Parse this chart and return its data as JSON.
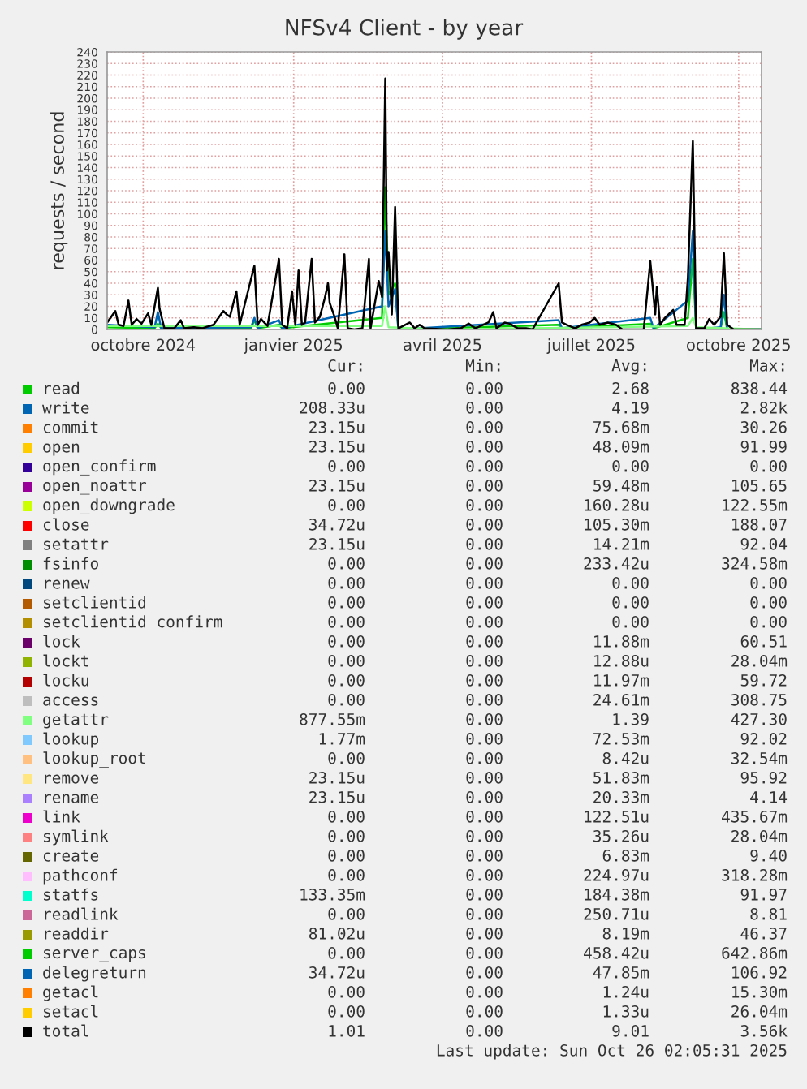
{
  "chart_data": {
    "type": "line",
    "title": "NFSv4 Client - by year",
    "ylabel": "requests / second",
    "xlim": [
      "2024-09-21",
      "2025-10-26"
    ],
    "xticks": [
      {
        "value": "2024-10-13",
        "label": "octobre 2024"
      },
      {
        "value": "2025-01-13",
        "label": "janvier 2025"
      },
      {
        "value": "2025-04-14",
        "label": "avril 2025"
      },
      {
        "value": "2025-07-14",
        "label": "juillet 2025"
      },
      {
        "value": "2025-10-12",
        "label": "octobre 2025"
      }
    ],
    "ylim": [
      0,
      240
    ],
    "yticks": [
      0,
      10,
      20,
      30,
      40,
      50,
      60,
      70,
      80,
      90,
      100,
      110,
      120,
      130,
      140,
      150,
      160,
      170,
      180,
      190,
      200,
      210,
      220,
      230,
      240
    ],
    "grid": true,
    "legend": "bottom",
    "series": [
      {
        "name": "read",
        "color": "#00cc00",
        "x": [
          "2024-09-21",
          "2024-10-20",
          "2024-10-22",
          "2024-10-24",
          "2024-12-18",
          "2024-12-20",
          "2024-12-22",
          "2025-01-04",
          "2025-01-06",
          "2025-03-08",
          "2025-03-10",
          "2025-03-12",
          "2025-03-16",
          "2025-03-18",
          "2025-06-24",
          "2025-06-26",
          "2025-08-19",
          "2025-08-21",
          "2025-09-11",
          "2025-09-14",
          "2025-09-16",
          "2025-10-01",
          "2025-10-03",
          "2025-10-05",
          "2025-10-26"
        ],
        "values": [
          2,
          1,
          5,
          1,
          1,
          8,
          1,
          4,
          1,
          10,
          123,
          30,
          40,
          0,
          4,
          1,
          5,
          1,
          10,
          61,
          0,
          1,
          15,
          0,
          0
        ]
      },
      {
        "name": "write",
        "color": "#0066b3",
        "x": [
          "2024-09-21",
          "2024-10-20",
          "2024-10-22",
          "2024-10-24",
          "2024-12-18",
          "2024-12-20",
          "2024-12-22",
          "2025-01-04",
          "2025-01-06",
          "2025-03-08",
          "2025-03-10",
          "2025-03-12",
          "2025-03-16",
          "2025-03-18",
          "2025-06-24",
          "2025-06-26",
          "2025-08-19",
          "2025-08-21",
          "2025-09-11",
          "2025-09-14",
          "2025-09-16",
          "2025-10-01",
          "2025-10-03",
          "2025-10-05",
          "2025-10-26"
        ],
        "values": [
          4,
          2,
          15,
          1,
          2,
          10,
          1,
          8,
          1,
          20,
          85,
          20,
          35,
          0,
          8,
          1,
          10,
          1,
          25,
          85,
          0,
          2,
          30,
          0,
          0
        ]
      },
      {
        "name": "commit",
        "color": "#ff8000"
      },
      {
        "name": "open",
        "color": "#ffcc00"
      },
      {
        "name": "open_confirm",
        "color": "#330099"
      },
      {
        "name": "open_noattr",
        "color": "#990099"
      },
      {
        "name": "open_downgrade",
        "color": "#ccff00"
      },
      {
        "name": "close",
        "color": "#ff0000"
      },
      {
        "name": "setattr",
        "color": "#808080"
      },
      {
        "name": "fsinfo",
        "color": "#008f00"
      },
      {
        "name": "renew",
        "color": "#00487d"
      },
      {
        "name": "setclientid",
        "color": "#b35a00"
      },
      {
        "name": "setclientid_confirm",
        "color": "#b38f00"
      },
      {
        "name": "lock",
        "color": "#6b006b"
      },
      {
        "name": "lockt",
        "color": "#8fb300"
      },
      {
        "name": "locku",
        "color": "#b30000"
      },
      {
        "name": "access",
        "color": "#bebebe"
      },
      {
        "name": "getattr",
        "color": "#80ff80",
        "x": [
          "2024-09-21",
          "2025-03-08",
          "2025-03-10",
          "2025-03-12",
          "2025-04-17",
          "2025-09-11",
          "2025-09-14",
          "2025-09-16",
          "2025-10-26"
        ],
        "values": [
          3,
          3,
          20,
          2,
          0,
          3,
          10,
          2,
          0
        ]
      },
      {
        "name": "lookup",
        "color": "#80c9ff"
      },
      {
        "name": "lookup_root",
        "color": "#ffc080"
      },
      {
        "name": "remove",
        "color": "#ffe680"
      },
      {
        "name": "rename",
        "color": "#aa80ff"
      },
      {
        "name": "link",
        "color": "#ee00cc"
      },
      {
        "name": "symlink",
        "color": "#ff8080"
      },
      {
        "name": "create",
        "color": "#666600"
      },
      {
        "name": "pathconf",
        "color": "#ffbfff"
      },
      {
        "name": "statfs",
        "color": "#00ffcc"
      },
      {
        "name": "readlink",
        "color": "#cc6699"
      },
      {
        "name": "readdir",
        "color": "#999900"
      },
      {
        "name": "server_caps",
        "color": "#00cc00"
      },
      {
        "name": "delegreturn",
        "color": "#0066b3"
      },
      {
        "name": "getacl",
        "color": "#ff8000"
      },
      {
        "name": "setacl",
        "color": "#ffcc00"
      },
      {
        "name": "total",
        "color": "#000000",
        "x": [
          "2024-09-21",
          "2024-09-26",
          "2024-09-28",
          "2024-10-01",
          "2024-10-04",
          "2024-10-06",
          "2024-10-09",
          "2024-10-12",
          "2024-10-16",
          "2024-10-18",
          "2024-10-22",
          "2024-10-23",
          "2024-10-26",
          "2024-11-01",
          "2024-11-05",
          "2024-11-07",
          "2024-11-10",
          "2024-11-13",
          "2024-11-18",
          "2024-11-25",
          "2024-12-01",
          "2024-12-03",
          "2024-12-05",
          "2024-12-09",
          "2024-12-11",
          "2024-12-18",
          "2024-12-20",
          "2024-12-22",
          "2024-12-24",
          "2024-12-28",
          "2025-01-04",
          "2025-01-06",
          "2025-01-09",
          "2025-01-12",
          "2025-01-14",
          "2025-01-16",
          "2025-01-18",
          "2025-01-20",
          "2025-01-24",
          "2025-01-26",
          "2025-01-29",
          "2025-02-01",
          "2025-02-03",
          "2025-02-04",
          "2025-02-07",
          "2025-02-09",
          "2025-02-13",
          "2025-02-15",
          "2025-02-19",
          "2025-02-24",
          "2025-02-28",
          "2025-03-01",
          "2025-03-06",
          "2025-03-08",
          "2025-03-10",
          "2025-03-11",
          "2025-03-12",
          "2025-03-14",
          "2025-03-16",
          "2025-03-18",
          "2025-03-25",
          "2025-03-28",
          "2025-03-31",
          "2025-04-03",
          "2025-04-17",
          "2025-04-25",
          "2025-04-30",
          "2025-05-04",
          "2025-05-12",
          "2025-05-15",
          "2025-05-17",
          "2025-05-22",
          "2025-05-25",
          "2025-05-30",
          "2025-06-04",
          "2025-06-08",
          "2025-06-24",
          "2025-06-26",
          "2025-06-29",
          "2025-07-04",
          "2025-07-08",
          "2025-07-13",
          "2025-07-16",
          "2025-07-19",
          "2025-07-24",
          "2025-07-29",
          "2025-08-02",
          "2025-08-07",
          "2025-08-15",
          "2025-08-19",
          "2025-08-22",
          "2025-08-23",
          "2025-08-25",
          "2025-08-28",
          "2025-09-02",
          "2025-09-04",
          "2025-09-09",
          "2025-09-11",
          "2025-09-14",
          "2025-09-16",
          "2025-09-21",
          "2025-09-24",
          "2025-09-27",
          "2025-10-01",
          "2025-10-03",
          "2025-10-05",
          "2025-10-09",
          "2025-10-26"
        ],
        "values": [
          6,
          16,
          4,
          3,
          25,
          4,
          9,
          5,
          14,
          4,
          36,
          18,
          1,
          1,
          8,
          1,
          null,
          2,
          1,
          4,
          16,
          13,
          11,
          33,
          4,
          44,
          55,
          4,
          9,
          3,
          61,
          4,
          1,
          33,
          4,
          51,
          4,
          6,
          61,
          6,
          11,
          27,
          40,
          23,
          11,
          1,
          65,
          1,
          0,
          1,
          61,
          1,
          42,
          28,
          217,
          51,
          67,
          13,
          106,
          1,
          6,
          1,
          4,
          1,
          0,
          1,
          5,
          1,
          6,
          15,
          1,
          6,
          5,
          1,
          1,
          0,
          40,
          6,
          4,
          1,
          4,
          6,
          10,
          4,
          6,
          4,
          0,
          null,
          0,
          59,
          13,
          37,
          4,
          10,
          17,
          4,
          4,
          45,
          163,
          1,
          1,
          9,
          4,
          11,
          66,
          4,
          0,
          0
        ]
      }
    ],
    "annotations": [
      "Cur:",
      "Min:",
      "Avg:",
      "Max:",
      "0.00",
      "0.00",
      "2.68",
      "838.44",
      "208.33u",
      "0.00",
      "4.19",
      "2.82k",
      "23.15u",
      "0.00",
      "75.68m",
      "30.26",
      "23.15u",
      "0.00",
      "48.09m",
      "91.99",
      "0.00",
      "0.00",
      "0.00",
      "0.00",
      "23.15u",
      "0.00",
      "59.48m",
      "105.65",
      "0.00",
      "0.00",
      "160.28u",
      "122.55m",
      "34.72u",
      "0.00",
      "105.30m",
      "188.07",
      "23.15u",
      "0.00",
      "14.21m",
      "92.04",
      "0.00",
      "0.00",
      "233.42u",
      "324.58m",
      "0.00",
      "0.00",
      "0.00",
      "0.00",
      "0.00",
      "0.00",
      "0.00",
      "0.00",
      "0.00",
      "0.00",
      "0.00",
      "0.00",
      "0.00",
      "0.00",
      "11.88m",
      "60.51",
      "0.00",
      "0.00",
      "12.88u",
      "28.04m",
      "0.00",
      "0.00",
      "11.97m",
      "59.72",
      "0.00",
      "0.00",
      "24.61m",
      "308.75",
      "877.55m",
      "0.00",
      "1.39",
      "427.30",
      "1.77m",
      "0.00",
      "72.53m",
      "92.02",
      "0.00",
      "0.00",
      "8.42u",
      "32.54m",
      "23.15u",
      "0.00",
      "51.83m",
      "95.92",
      "23.15u",
      "0.00",
      "20.33m",
      "4.14",
      "0.00",
      "0.00",
      "122.51u",
      "435.67m",
      "0.00",
      "0.00",
      "35.26u",
      "28.04m",
      "0.00",
      "0.00",
      "6.83m",
      "9.40",
      "0.00",
      "0.00",
      "224.97u",
      "318.28m",
      "133.35m",
      "0.00",
      "184.38m",
      "91.97",
      "0.00",
      "0.00",
      "250.71u",
      "8.81",
      "81.02u",
      "0.00",
      "8.19m",
      "46.37",
      "0.00",
      "0.00",
      "458.42u",
      "642.86m",
      "34.72u",
      "0.00",
      "47.85m",
      "106.92",
      "0.00",
      "0.00",
      "1.24u",
      "15.30m",
      "0.00",
      "0.00",
      "1.33u",
      "26.04m",
      "1.01",
      "0.00",
      "9.01",
      "3.56k",
      "Last update: Sun Oct 26 02:05:31 2025"
    ]
  }
}
